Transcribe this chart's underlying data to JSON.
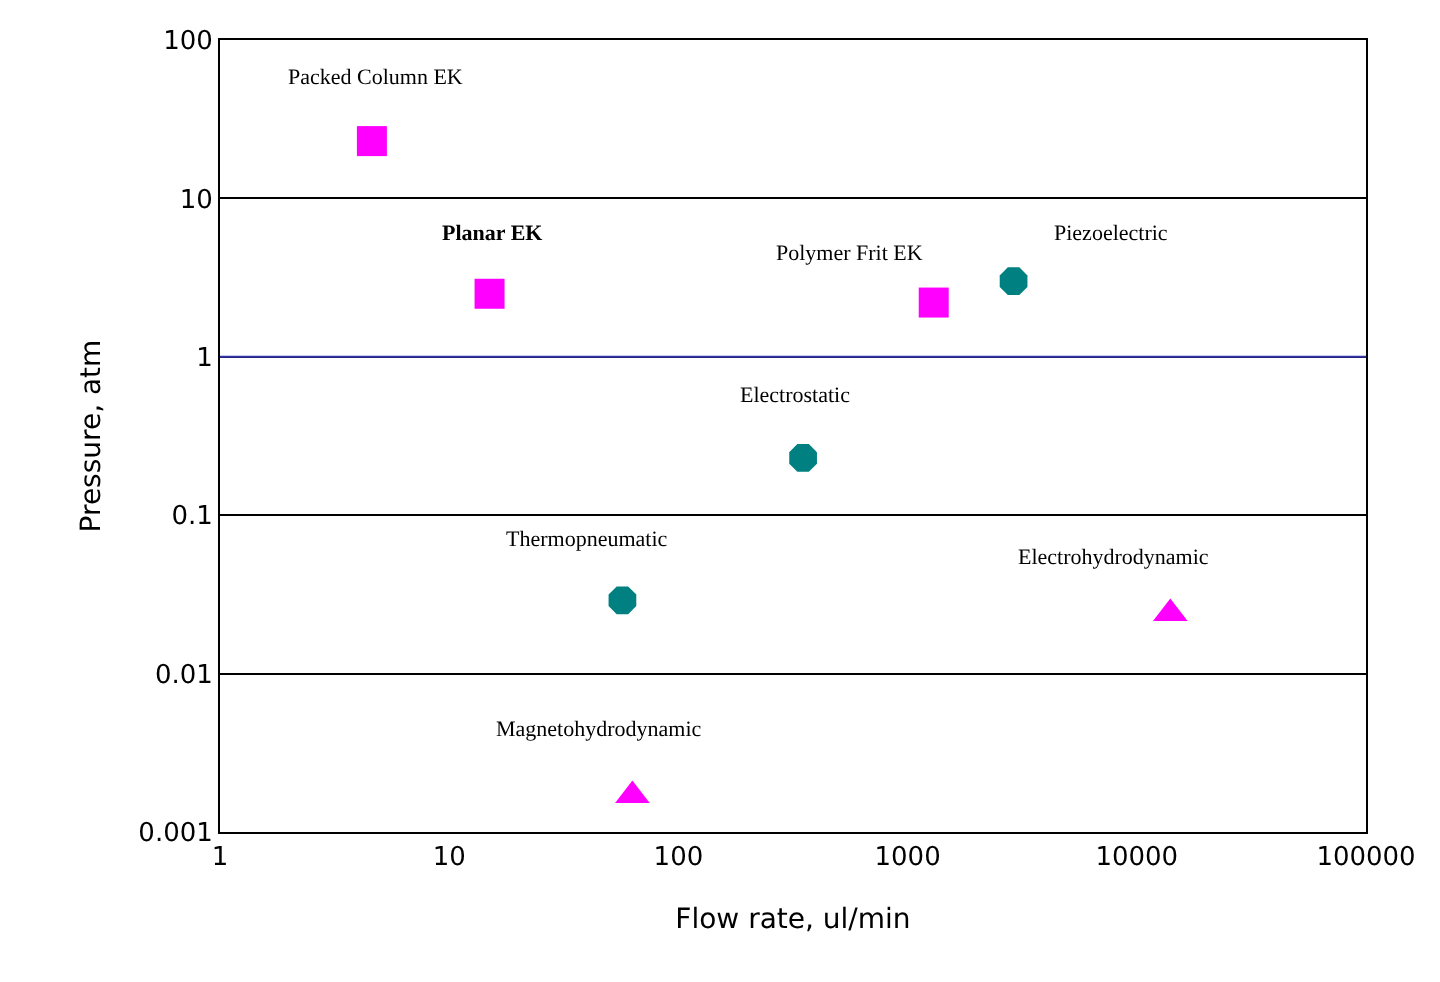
{
  "chart_data": {
    "type": "scatter",
    "xlabel": "Flow rate, ul/min",
    "ylabel": "Pressure, atm",
    "log": "xy",
    "grid": "y",
    "xlim": [
      1,
      100000
    ],
    "xticks": [
      1,
      10,
      100,
      1000,
      10000,
      100000
    ],
    "ylim": [
      0.001,
      100
    ],
    "yticks": [
      0.001,
      0.01,
      0.1,
      1,
      10,
      100
    ],
    "ref_lines": [
      {
        "axis": "y",
        "value": 1,
        "color": "#3333aa"
      }
    ],
    "series": [
      {
        "color": "#ff00ff",
        "marker": "square",
        "x": [
          4.6,
          15,
          1300
        ],
        "values": [
          23,
          2.5,
          2.2
        ]
      },
      {
        "color": "#008080",
        "marker": "circle",
        "x": [
          2900,
          350,
          57
        ],
        "values": [
          3.0,
          0.23,
          0.029
        ]
      },
      {
        "color": "#ff00ff",
        "marker": "triangle",
        "x": [
          14000,
          63
        ],
        "values": [
          0.024,
          0.0017
        ]
      }
    ],
    "annotations": [
      {
        "text": "Packed Column EK",
        "x": 4.6,
        "y": 23
      },
      {
        "text": "Planar EK",
        "x": 15,
        "y": 2.5
      },
      {
        "text": "Polymer Frit EK",
        "x": 1300,
        "y": 2.2
      },
      {
        "text": "Piezoelectric",
        "x": 2900,
        "y": 3.0
      },
      {
        "text": "Electrostatic",
        "x": 350,
        "y": 0.23
      },
      {
        "text": "Thermopneumatic",
        "x": 57,
        "y": 0.029
      },
      {
        "text": "Electrohydrodynamic",
        "x": 14000,
        "y": 0.024
      },
      {
        "text": "Magnetohydrodynamic",
        "x": 63,
        "y": 0.0017
      }
    ]
  }
}
